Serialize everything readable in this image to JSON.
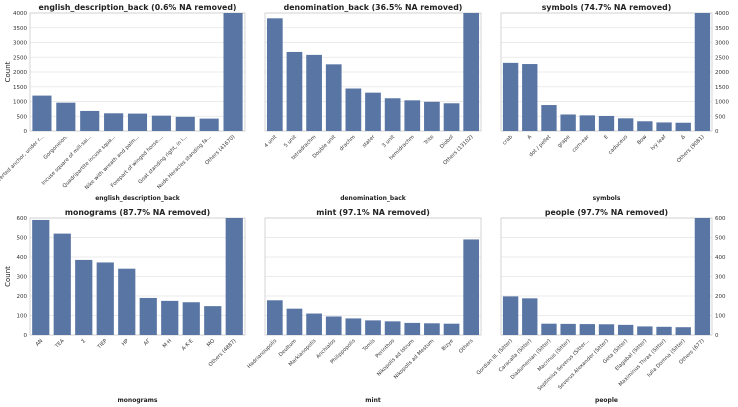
{
  "figure": {
    "bar_color": "#5975a4",
    "grid_color": "#e5e5e5",
    "ylabel": "Count"
  },
  "chart_data": [
    {
      "type": "bar",
      "title": "english_description_back (0.6% NA removed)",
      "xlabel": "english_description_back",
      "ylabel": "Count",
      "ylim": [
        0,
        4000
      ],
      "yticks": [
        0,
        500,
        1000,
        1500,
        2000,
        2500,
        3000,
        3500,
        4000
      ],
      "categories": [
        "Inverted anchor, under r...",
        "Gorgoneion.",
        "Incuse square of mill-sai...",
        "Quadripartite incuse squa...",
        "Nike with wreath and palm...",
        "Forepart of winged horse....",
        "Goat standing right, in i...",
        "Nude Heracles standing fa...",
        "Others (41670)"
      ],
      "values": [
        1200,
        960,
        680,
        600,
        590,
        520,
        480,
        420,
        4000
      ]
    },
    {
      "type": "bar",
      "title": "denomination_back (36.5% NA removed)",
      "xlabel": "denomination_back",
      "ylabel": "",
      "ylim": [
        0,
        4000
      ],
      "yticks": [],
      "categories": [
        "4 unit",
        "5 unit",
        "tetradrachm",
        "Double unit",
        "drachm",
        "stater",
        "3 unit",
        "hemidrachm",
        "Trite",
        "Diobol",
        "Others (13102)"
      ],
      "values": [
        3820,
        2680,
        2580,
        2260,
        1440,
        1300,
        1110,
        1040,
        990,
        940,
        4000
      ]
    },
    {
      "type": "bar",
      "title": "symbols (74.7% NA removed)",
      "xlabel": "symbols",
      "ylabel": "",
      "ylim": [
        0,
        4000
      ],
      "yticks": [
        0,
        500,
        1000,
        1500,
        2000,
        2500,
        3000,
        3500,
        4000
      ],
      "y_axis_side": "right",
      "categories": [
        "crab",
        "A",
        "dot / pellet",
        "grape",
        "corn-ear",
        "E",
        "caduceus",
        "Bow",
        "Ivy leaf",
        "Δ",
        "Others (9081)"
      ],
      "values": [
        2310,
        2270,
        880,
        560,
        530,
        510,
        430,
        330,
        290,
        280,
        4000
      ]
    },
    {
      "type": "bar",
      "title": "monograms (87.7% NA removed)",
      "xlabel": "monograms",
      "ylabel": "Count",
      "ylim": [
        0,
        600
      ],
      "yticks": [
        0,
        100,
        200,
        300,
        400,
        500,
        600
      ],
      "categories": [
        "AN",
        "TEA",
        "Σ",
        "TIEP",
        "HP",
        "AΓ",
        "M·H",
        "A·K·E",
        "MO",
        "Others (4887)"
      ],
      "values": [
        590,
        520,
        385,
        372,
        340,
        190,
        175,
        168,
        148,
        600
      ]
    },
    {
      "type": "bar",
      "title": "mint (97.1% NA removed)",
      "xlabel": "mint",
      "ylabel": "",
      "ylim": [
        0,
        600
      ],
      "yticks": [],
      "categories": [
        "Hadrianoupolis",
        "Deultum",
        "Markianopolis",
        "Anchialos",
        "Philippopolis",
        "Tomis",
        "Perinthos",
        "Nikopolis ad Istrum",
        "Nikopolis ad Mestum",
        "Bizye",
        "Others"
      ],
      "values": [
        178,
        135,
        110,
        95,
        85,
        75,
        70,
        62,
        60,
        58,
        490
      ]
    },
    {
      "type": "bar",
      "title": "people (97.7% NA removed)",
      "xlabel": "people",
      "ylabel": "",
      "ylim": [
        0,
        600
      ],
      "yticks": [
        0,
        100,
        200,
        300,
        400,
        500,
        600
      ],
      "y_axis_side": "right",
      "categories": [
        "Gordian III. (Sitter)",
        "Caracalla (Sitter)",
        "Diadumenian (Sitter)",
        "Macrinus (Sitter)",
        "Septimius Severus (Sitter...",
        "Severus Alexander (Sitter)",
        "Geta (Sitter)",
        "Elagabal (Sitter)",
        "Maximinus Thrax (Sitter)",
        "Iulia Domna (Sitter)",
        "Others (677)"
      ],
      "values": [
        198,
        188,
        58,
        57,
        56,
        55,
        52,
        44,
        42,
        40,
        600
      ]
    }
  ]
}
